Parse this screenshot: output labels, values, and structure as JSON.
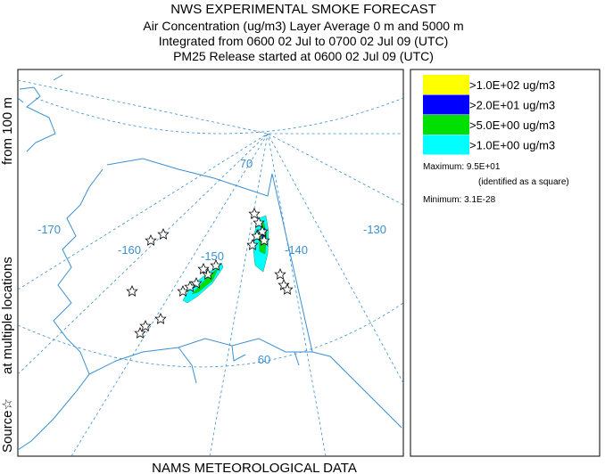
{
  "header": {
    "lines": [
      "NWS EXPERIMENTAL SMOKE FORECAST",
      "Air Concentration (ug/m3) Layer Average    0 m and  5000 m",
      "Integrated from 0600 02 Jul to 0700 02 Jul 09 (UTC)",
      "PM25 Release started at 0600 02 Jul 09 (UTC)"
    ]
  },
  "side_label": [
    "Source☆",
    "at multiple locations",
    "from  100 m"
  ],
  "map": {
    "graticule_labels": [
      "-170",
      "-160",
      "-150",
      "-140",
      "-130",
      "70",
      "60"
    ]
  },
  "legend": {
    "entries": [
      {
        "label": ">1.0E+02 ug/m3",
        "color": "#ffff00"
      },
      {
        "label": ">2.0E+01 ug/m3",
        "color": "#0000ff"
      },
      {
        "label": ">5.0E+00 ug/m3",
        "color": "#00e000"
      },
      {
        "label": ">1.0E+00 ug/m3",
        "color": "#00ffff"
      }
    ],
    "maximum": "Maximum: 9.5E+01",
    "maximum_note": "(identified as a square)",
    "minimum": "Minimum: 3.1E-28"
  },
  "footer": "NAMS METEOROLOGICAL DATA"
}
